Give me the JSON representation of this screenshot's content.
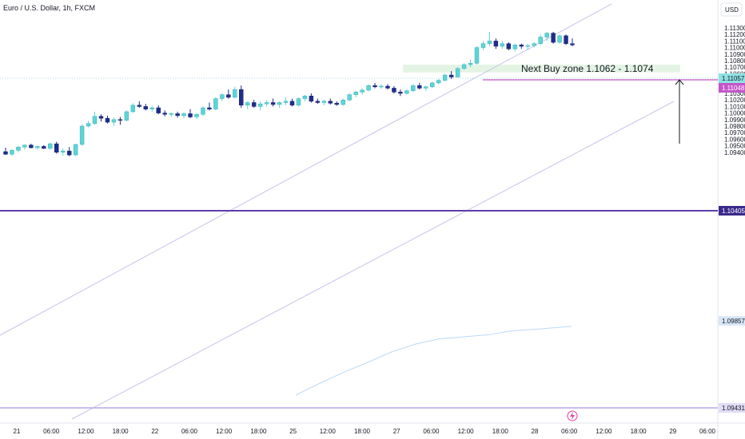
{
  "header": {
    "symbol_title": "Euro / U.S. Dollar, 1h, FXCM",
    "currency": "USD"
  },
  "colors": {
    "bull": "#5fd3d6",
    "bear": "#1f2c8c",
    "channel": "#c8c2e6",
    "support": "#5b3fa8",
    "bottom_line": "#b8a6e8",
    "price_line": "#c455c9",
    "ma": "#bcdaf5",
    "zone_fill": "#e4f4e4",
    "axis_text": "#131722"
  },
  "chart_data": {
    "type": "candlestick",
    "title": "Euro / U.S. Dollar, 1h, FXCM",
    "y_axis_unit": "USD",
    "y_ticks": [
      "1.11300",
      "1.11200",
      "1.11100",
      "1.11000",
      "1.10900",
      "1.10800",
      "1.10700",
      "1.10600",
      "1.10500",
      "1.10400",
      "1.10300",
      "1.10200",
      "1.10100",
      "1.10000",
      "1.09900",
      "1.09800",
      "1.09700",
      "1.09600",
      "1.09500",
      "1.09400"
    ],
    "x_ticks": [
      "21",
      "06:00",
      "12:00",
      "18:00",
      "22",
      "06:00",
      "12:00",
      "18:00",
      "25",
      "12:00",
      "18:00",
      "27",
      "06:00",
      "12:00",
      "18:00",
      "28",
      "06:00",
      "12:00",
      "18:00",
      "29",
      "06:00"
    ],
    "grid": false,
    "candles": [
      [
        1.0941,
        1.0947,
        1.0936,
        1.0937
      ],
      [
        1.0937,
        1.0945,
        1.0935,
        1.0943
      ],
      [
        1.0943,
        1.095,
        1.094,
        1.0948
      ],
      [
        1.0948,
        1.0952,
        1.0944,
        1.0951
      ],
      [
        1.0951,
        1.0953,
        1.0946,
        1.0947
      ],
      [
        1.0947,
        1.095,
        1.0944,
        1.0949
      ],
      [
        1.0949,
        1.0951,
        1.0945,
        1.0946
      ],
      [
        1.0946,
        1.0955,
        1.0944,
        1.0953
      ],
      [
        1.0953,
        1.0956,
        1.0938,
        1.094
      ],
      [
        1.094,
        1.0946,
        1.0935,
        1.0942
      ],
      [
        1.0942,
        1.0948,
        1.0934,
        1.0936
      ],
      [
        1.0936,
        1.0953,
        1.0934,
        1.0952
      ],
      [
        1.0952,
        1.0983,
        1.095,
        1.098
      ],
      [
        1.098,
        1.0988,
        1.0978,
        1.0984
      ],
      [
        1.0984,
        1.1002,
        1.0982,
        1.0995
      ],
      [
        1.0995,
        1.0998,
        1.0987,
        1.0992
      ],
      [
        1.0992,
        1.0996,
        1.0984,
        1.0986
      ],
      [
        1.0986,
        1.0993,
        1.098,
        1.099
      ],
      [
        1.099,
        1.0994,
        1.0982,
        1.0989
      ],
      [
        1.0989,
        1.1004,
        1.0987,
        1.1002
      ],
      [
        1.1002,
        1.1015,
        1.1,
        1.1012
      ],
      [
        1.1012,
        1.1018,
        1.1008,
        1.101
      ],
      [
        1.101,
        1.1014,
        1.1004,
        1.1006
      ],
      [
        1.1006,
        1.1011,
        1.1002,
        1.1008
      ],
      [
        1.1008,
        1.1012,
        1.0998,
        1.1
      ],
      [
        1.1,
        1.1004,
        1.0995,
        1.0998
      ],
      [
        1.0998,
        1.1001,
        1.0994,
        1.0999
      ],
      [
        1.0999,
        1.1002,
        1.0993,
        1.0996
      ],
      [
        1.0996,
        1.1001,
        1.0992,
        1.0999
      ],
      [
        1.0999,
        1.1006,
        1.0992,
        1.0994
      ],
      [
        1.0994,
        1.1,
        1.0991,
        1.0998
      ],
      [
        1.0998,
        1.101,
        1.0996,
        1.1008
      ],
      [
        1.1008,
        1.1016,
        1.1004,
        1.1006
      ],
      [
        1.1006,
        1.1024,
        1.1004,
        1.1022
      ],
      [
        1.1022,
        1.103,
        1.1018,
        1.1028
      ],
      [
        1.1028,
        1.1036,
        1.1022,
        1.1024
      ],
      [
        1.1024,
        1.104,
        1.1022,
        1.1036
      ],
      [
        1.1036,
        1.1042,
        1.1008,
        1.1012
      ],
      [
        1.1012,
        1.1018,
        1.1006,
        1.1016
      ],
      [
        1.1016,
        1.102,
        1.1008,
        1.101
      ],
      [
        1.101,
        1.1018,
        1.1004,
        1.1014
      ],
      [
        1.1014,
        1.102,
        1.101,
        1.1016
      ],
      [
        1.1016,
        1.1022,
        1.101,
        1.1013
      ],
      [
        1.1013,
        1.1018,
        1.1008,
        1.1016
      ],
      [
        1.1016,
        1.1024,
        1.1012,
        1.1018
      ],
      [
        1.1018,
        1.1022,
        1.101,
        1.1012
      ],
      [
        1.1012,
        1.1024,
        1.101,
        1.1022
      ],
      [
        1.1022,
        1.1028,
        1.1018,
        1.1026
      ],
      [
        1.1026,
        1.103,
        1.1016,
        1.1018
      ],
      [
        1.1018,
        1.1022,
        1.1014,
        1.1016
      ],
      [
        1.1016,
        1.102,
        1.1012,
        1.1018
      ],
      [
        1.1018,
        1.1022,
        1.1013,
        1.1015
      ],
      [
        1.1015,
        1.1018,
        1.1011,
        1.1013
      ],
      [
        1.1013,
        1.1022,
        1.1011,
        1.102
      ],
      [
        1.102,
        1.103,
        1.1018,
        1.1028
      ],
      [
        1.1028,
        1.1034,
        1.1024,
        1.1032
      ],
      [
        1.1032,
        1.1038,
        1.1028,
        1.1035
      ],
      [
        1.1035,
        1.1044,
        1.1033,
        1.1042
      ],
      [
        1.1042,
        1.1046,
        1.1038,
        1.104
      ],
      [
        1.104,
        1.1044,
        1.1037,
        1.1041
      ],
      [
        1.1041,
        1.1044,
        1.1036,
        1.1038
      ],
      [
        1.1038,
        1.1041,
        1.103,
        1.1032
      ],
      [
        1.1032,
        1.1036,
        1.1026,
        1.103
      ],
      [
        1.103,
        1.1036,
        1.1028,
        1.1034
      ],
      [
        1.1034,
        1.1044,
        1.1032,
        1.1042
      ],
      [
        1.1042,
        1.1046,
        1.1036,
        1.1038
      ],
      [
        1.1038,
        1.1042,
        1.1034,
        1.104
      ],
      [
        1.104,
        1.1048,
        1.1038,
        1.1046
      ],
      [
        1.1046,
        1.1052,
        1.1044,
        1.105
      ],
      [
        1.105,
        1.106,
        1.1048,
        1.1058
      ],
      [
        1.1058,
        1.1064,
        1.1052,
        1.1055
      ],
      [
        1.1055,
        1.107,
        1.1054,
        1.1068
      ],
      [
        1.1068,
        1.1076,
        1.1066,
        1.1074
      ],
      [
        1.1074,
        1.1082,
        1.107,
        1.1076
      ],
      [
        1.1076,
        1.1102,
        1.1074,
        1.11
      ],
      [
        1.11,
        1.111,
        1.1096,
        1.1106
      ],
      [
        1.1106,
        1.1124,
        1.1102,
        1.111
      ],
      [
        1.111,
        1.1114,
        1.1098,
        1.1102
      ],
      [
        1.1102,
        1.111,
        1.1098,
        1.1106
      ],
      [
        1.1106,
        1.1108,
        1.1096,
        1.1098
      ],
      [
        1.1098,
        1.1106,
        1.1094,
        1.1104
      ],
      [
        1.1104,
        1.1106,
        1.1098,
        1.1102
      ],
      [
        1.1102,
        1.1106,
        1.1096,
        1.1103
      ],
      [
        1.1103,
        1.1108,
        1.11,
        1.1106
      ],
      [
        1.1106,
        1.112,
        1.1104,
        1.1116
      ],
      [
        1.1116,
        1.1124,
        1.111,
        1.1122
      ],
      [
        1.1122,
        1.1124,
        1.1106,
        1.1108
      ],
      [
        1.1108,
        1.112,
        1.1106,
        1.1118
      ],
      [
        1.1118,
        1.112,
        1.1104,
        1.1106
      ],
      [
        1.1106,
        1.1114,
        1.1102,
        1.1104
      ]
    ],
    "moving_average": [
      [
        1.088,
        1.0886
      ],
      [
        1.0898,
        1.0905
      ],
      [
        1.0915,
        1.092
      ],
      [
        1.093,
        1.0937
      ],
      [
        1.0946,
        1.0951
      ],
      [
        1.0958,
        1.0962
      ],
      [
        1.0966,
        1.0968
      ],
      [
        1.0969,
        1.0971
      ],
      [
        1.0972,
        1.0975
      ],
      [
        1.0978,
        1.098
      ],
      [
        1.0981,
        1.0984
      ],
      [
        1.0985,
        1.0986
      ]
    ],
    "horizontal_levels": {
      "resistance_support": 1.10405,
      "bottom_support": 1.09431,
      "current_price": 1.10048
    },
    "price_badges": {
      "last": "1.11057",
      "current": "1.11048",
      "support": "1.10405",
      "ma_value": "1.09857",
      "bottom": "1.09431"
    },
    "annotations": {
      "zone_label": "Next Buy zone 1.1062 - 1.1074",
      "zone_low": 1.1062,
      "zone_high": 1.1074,
      "arrow": "up"
    }
  }
}
